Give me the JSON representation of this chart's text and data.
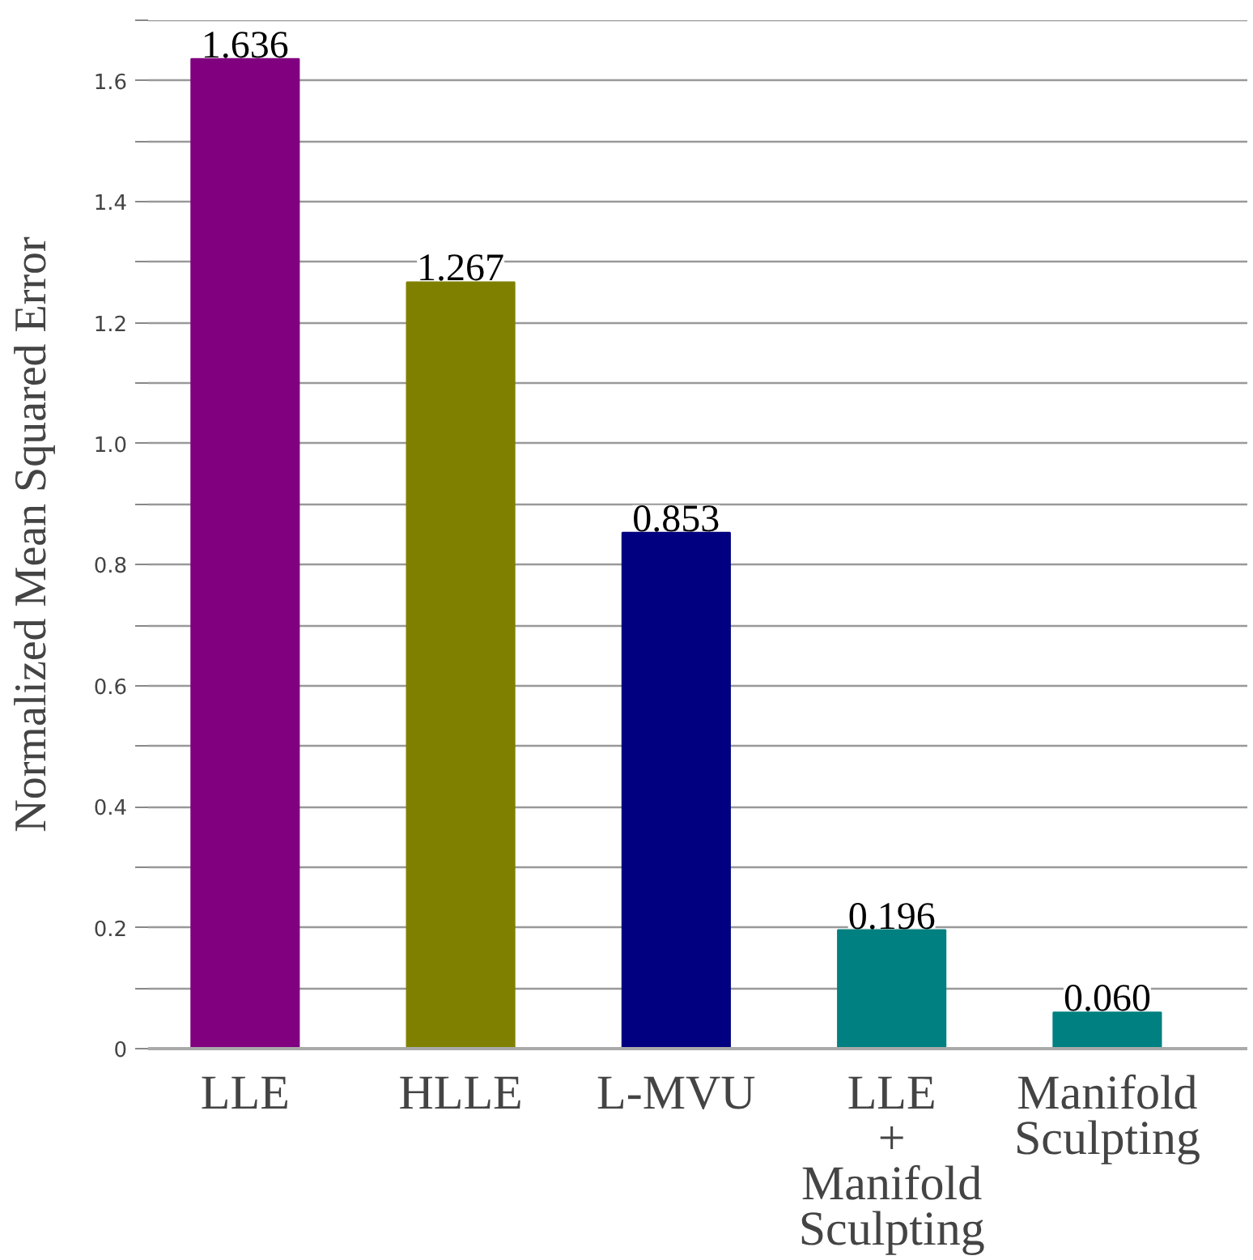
{
  "chart_data": {
    "type": "bar",
    "ylabel": "Normalized Mean Squared Error",
    "categories": [
      "LLE",
      "HLLE",
      "L-MVU",
      "LLE\n+\nManifold\nSculpting",
      "Manifold\nSculpting"
    ],
    "values": [
      1.636,
      1.267,
      0.853,
      0.196,
      0.06
    ],
    "value_labels": [
      "1.636",
      "1.267",
      "0.853",
      "0.196",
      "0.060"
    ],
    "colors": [
      "#800080",
      "#808000",
      "#000080",
      "#008080",
      "#008080"
    ],
    "ylim": [
      0,
      1.7
    ],
    "yticks": [
      0,
      {
        "value": 0.1,
        "label": null
      },
      {
        "value": 0.2,
        "label": "0.2"
      },
      {
        "value": 0.3,
        "label": null
      },
      {
        "value": 0.4,
        "label": "0.4"
      },
      {
        "value": 0.5,
        "label": null
      },
      {
        "value": 0.6,
        "label": "0.6"
      },
      {
        "value": 0.7,
        "label": null
      },
      {
        "value": 0.8,
        "label": "0.8"
      },
      {
        "value": 0.9,
        "label": null
      },
      {
        "value": 1.0,
        "label": "1.0"
      },
      {
        "value": 1.1,
        "label": null
      },
      {
        "value": 1.2,
        "label": "1.2"
      },
      {
        "value": 1.3,
        "label": null
      },
      {
        "value": 1.4,
        "label": "1.4"
      },
      {
        "value": 1.5,
        "label": null
      },
      {
        "value": 1.6,
        "label": "1.6"
      },
      {
        "value": 1.7,
        "label": null
      }
    ],
    "grid": "y"
  }
}
